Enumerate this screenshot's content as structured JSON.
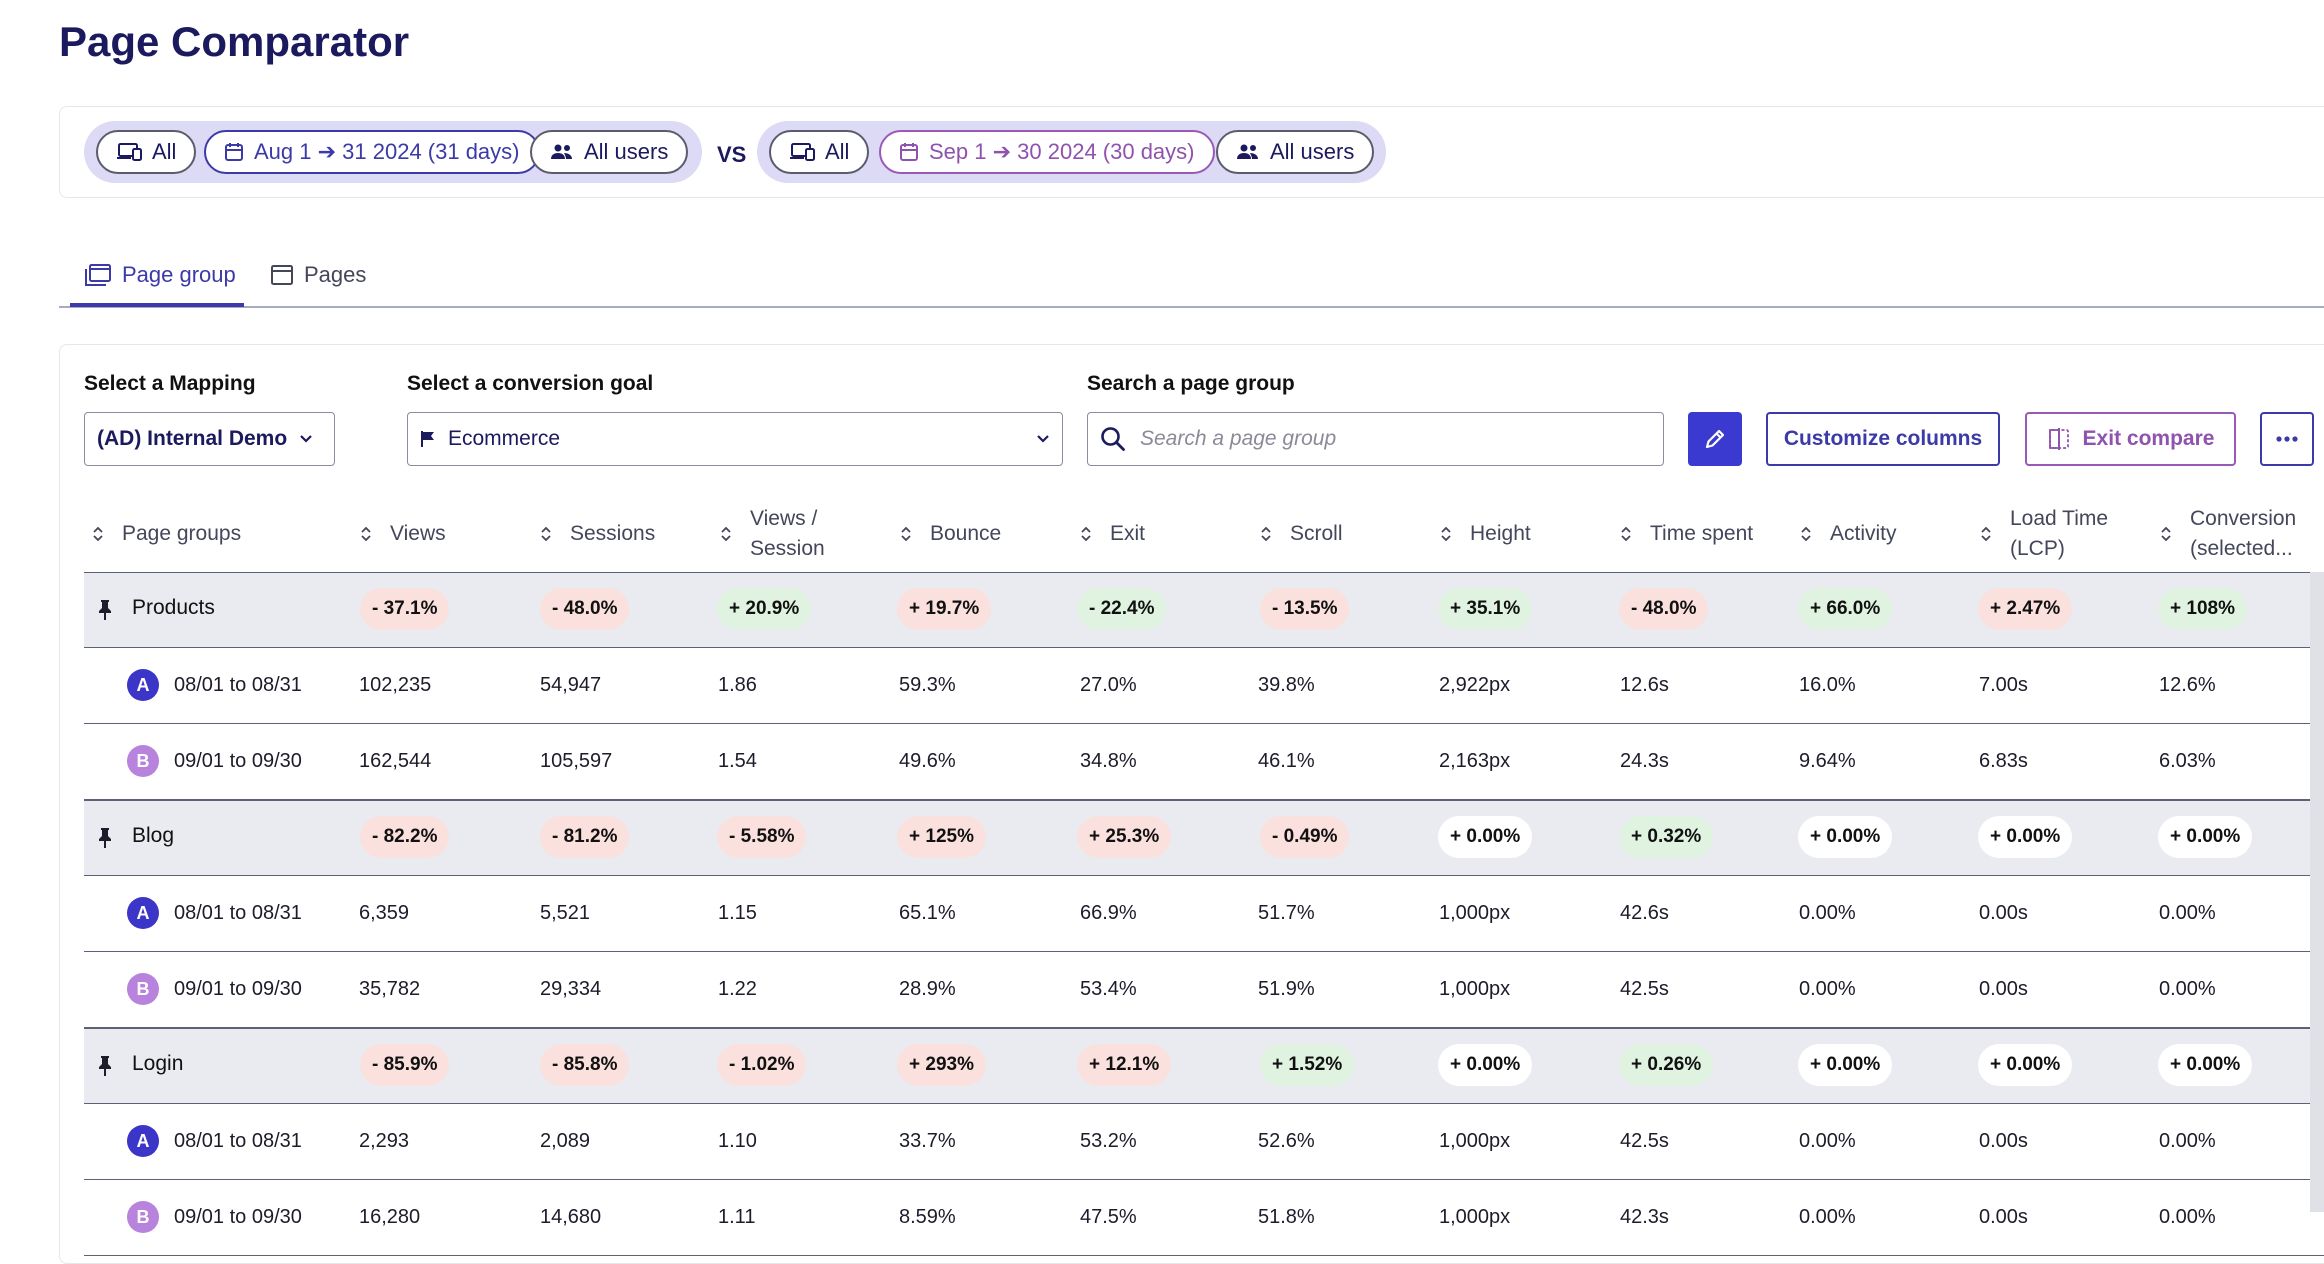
{
  "page": {
    "title": "Page Comparator"
  },
  "filters": {
    "a": {
      "device": "All",
      "date": "Aug 1 ➔ 31 2024 (31 days)",
      "users": "All users"
    },
    "vs": "VS",
    "b": {
      "device": "All",
      "date": "Sep 1 ➔ 30 2024 (30 days)",
      "users": "All users"
    }
  },
  "tabs": [
    {
      "label": "Page group",
      "active": true
    },
    {
      "label": "Pages",
      "active": false
    }
  ],
  "controls": {
    "mapping_label": "Select a Mapping",
    "mapping_value": "(AD) Internal Demo",
    "goal_label": "Select a conversion goal",
    "goal_value": "Ecommerce",
    "search_label": "Search a page group",
    "search_placeholder": "Search a page group",
    "customize_label": "Customize columns",
    "exit_label": "Exit compare"
  },
  "columns": [
    [
      "Page groups"
    ],
    [
      "Views"
    ],
    [
      "Sessions"
    ],
    [
      "Views /",
      "Session"
    ],
    [
      "Bounce"
    ],
    [
      "Exit"
    ],
    [
      "Scroll"
    ],
    [
      "Height"
    ],
    [
      "Time spent"
    ],
    [
      "Activity"
    ],
    [
      "Load Time",
      "(LCP)"
    ],
    [
      "Conversion",
      "(selected..."
    ]
  ],
  "groups": [
    {
      "name": "Products",
      "deltas": [
        {
          "text": "- 37.1%",
          "tone": "neg"
        },
        {
          "text": "- 48.0%",
          "tone": "neg"
        },
        {
          "text": "+ 20.9%",
          "tone": "pos"
        },
        {
          "text": "+ 19.7%",
          "tone": "neg"
        },
        {
          "text": "- 22.4%",
          "tone": "pos"
        },
        {
          "text": "- 13.5%",
          "tone": "neg"
        },
        {
          "text": "+ 35.1%",
          "tone": "pos"
        },
        {
          "text": "- 48.0%",
          "tone": "neg"
        },
        {
          "text": "+ 66.0%",
          "tone": "pos"
        },
        {
          "text": "+ 2.47%",
          "tone": "neg"
        },
        {
          "text": "+ 108%",
          "tone": "pos"
        }
      ],
      "rows": [
        {
          "avatar": "A",
          "period": "08/01 to 08/31",
          "values": [
            "102,235",
            "54,947",
            "1.86",
            "59.3%",
            "27.0%",
            "39.8%",
            "2,922px",
            "12.6s",
            "16.0%",
            "7.00s",
            "12.6%"
          ]
        },
        {
          "avatar": "B",
          "period": "09/01 to 09/30",
          "values": [
            "162,544",
            "105,597",
            "1.54",
            "49.6%",
            "34.8%",
            "46.1%",
            "2,163px",
            "24.3s",
            "9.64%",
            "6.83s",
            "6.03%"
          ]
        }
      ]
    },
    {
      "name": "Blog",
      "deltas": [
        {
          "text": "- 82.2%",
          "tone": "neg"
        },
        {
          "text": "- 81.2%",
          "tone": "neg"
        },
        {
          "text": "- 5.58%",
          "tone": "neg"
        },
        {
          "text": "+ 125%",
          "tone": "neg"
        },
        {
          "text": "+ 25.3%",
          "tone": "neg"
        },
        {
          "text": "- 0.49%",
          "tone": "neg"
        },
        {
          "text": "+ 0.00%",
          "tone": "zero"
        },
        {
          "text": "+ 0.32%",
          "tone": "pos"
        },
        {
          "text": "+ 0.00%",
          "tone": "zero"
        },
        {
          "text": "+ 0.00%",
          "tone": "zero"
        },
        {
          "text": "+ 0.00%",
          "tone": "zero"
        }
      ],
      "rows": [
        {
          "avatar": "A",
          "period": "08/01 to 08/31",
          "values": [
            "6,359",
            "5,521",
            "1.15",
            "65.1%",
            "66.9%",
            "51.7%",
            "1,000px",
            "42.6s",
            "0.00%",
            "0.00s",
            "0.00%"
          ]
        },
        {
          "avatar": "B",
          "period": "09/01 to 09/30",
          "values": [
            "35,782",
            "29,334",
            "1.22",
            "28.9%",
            "53.4%",
            "51.9%",
            "1,000px",
            "42.5s",
            "0.00%",
            "0.00s",
            "0.00%"
          ]
        }
      ]
    },
    {
      "name": "Login",
      "deltas": [
        {
          "text": "- 85.9%",
          "tone": "neg"
        },
        {
          "text": "- 85.8%",
          "tone": "neg"
        },
        {
          "text": "- 1.02%",
          "tone": "neg"
        },
        {
          "text": "+ 293%",
          "tone": "neg"
        },
        {
          "text": "+ 12.1%",
          "tone": "neg"
        },
        {
          "text": "+ 1.52%",
          "tone": "pos"
        },
        {
          "text": "+ 0.00%",
          "tone": "zero"
        },
        {
          "text": "+ 0.26%",
          "tone": "pos"
        },
        {
          "text": "+ 0.00%",
          "tone": "zero"
        },
        {
          "text": "+ 0.00%",
          "tone": "zero"
        },
        {
          "text": "+ 0.00%",
          "tone": "zero"
        }
      ],
      "rows": [
        {
          "avatar": "A",
          "period": "08/01 to 08/31",
          "values": [
            "2,293",
            "2,089",
            "1.10",
            "33.7%",
            "53.2%",
            "52.6%",
            "1,000px",
            "42.5s",
            "0.00%",
            "0.00s",
            "0.00%"
          ]
        },
        {
          "avatar": "B",
          "period": "09/01 to 09/30",
          "values": [
            "16,280",
            "14,680",
            "1.11",
            "8.59%",
            "47.5%",
            "51.8%",
            "1,000px",
            "42.3s",
            "0.00%",
            "0.00s",
            "0.00%"
          ]
        }
      ]
    }
  ]
}
